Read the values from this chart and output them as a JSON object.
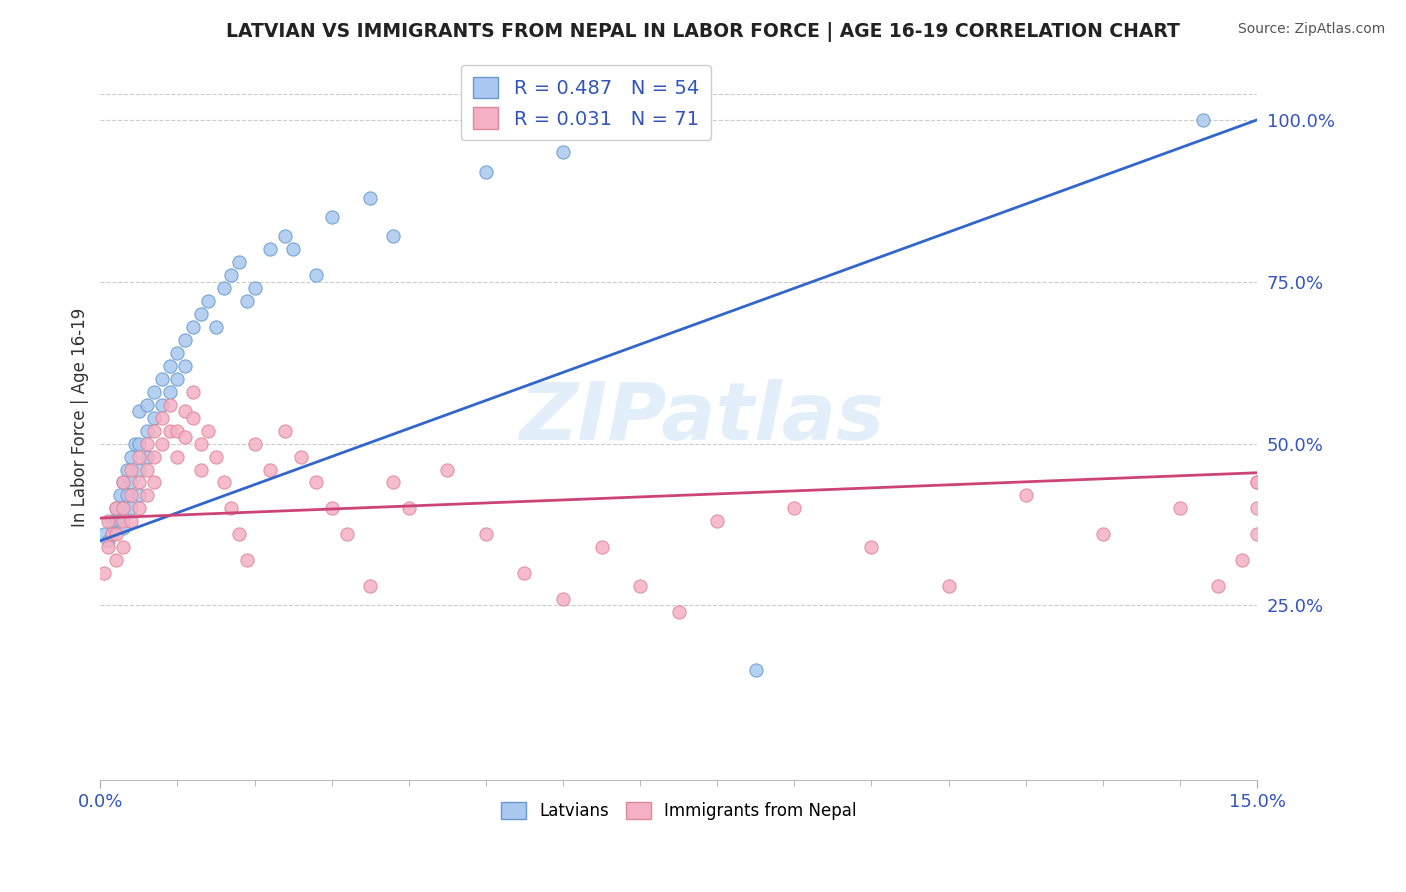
{
  "title": "LATVIAN VS IMMIGRANTS FROM NEPAL IN LABOR FORCE | AGE 16-19 CORRELATION CHART",
  "source": "Source: ZipAtlas.com",
  "ylabel": "In Labor Force | Age 16-19",
  "xlim": [
    0.0,
    0.15
  ],
  "ylim": [
    -0.02,
    1.1
  ],
  "ytick_labels_right": [
    "25.0%",
    "50.0%",
    "75.0%",
    "100.0%"
  ],
  "ytick_vals_right": [
    0.25,
    0.5,
    0.75,
    1.0
  ],
  "grid_vals": [
    0.25,
    0.5,
    0.75,
    1.0
  ],
  "latvian_color": "#aac8f0",
  "latvian_edge_color": "#6699cc",
  "nepal_color": "#f5b0c5",
  "nepal_edge_color": "#dd8899",
  "trend_latvian_color": "#3366cc",
  "trend_nepal_color": "#cc4477",
  "legend_R_color": "#3355bb",
  "latvian_R": 0.487,
  "latvian_N": 54,
  "nepal_R": 0.031,
  "nepal_N": 71,
  "watermark_text": "ZIPatlas",
  "watermark_color": "#d0e4f5",
  "background_color": "#ffffff",
  "latvian_x": [
    0.0005,
    0.001,
    0.0015,
    0.0015,
    0.002,
    0.002,
    0.0025,
    0.0025,
    0.003,
    0.003,
    0.003,
    0.0035,
    0.0035,
    0.004,
    0.004,
    0.004,
    0.0045,
    0.005,
    0.005,
    0.005,
    0.005,
    0.006,
    0.006,
    0.006,
    0.007,
    0.007,
    0.008,
    0.008,
    0.009,
    0.009,
    0.01,
    0.01,
    0.011,
    0.011,
    0.012,
    0.013,
    0.014,
    0.015,
    0.016,
    0.017,
    0.018,
    0.019,
    0.02,
    0.022,
    0.024,
    0.025,
    0.028,
    0.03,
    0.035,
    0.038,
    0.05,
    0.06,
    0.085,
    0.143
  ],
  "latvian_y": [
    0.36,
    0.35,
    0.38,
    0.36,
    0.4,
    0.38,
    0.42,
    0.38,
    0.44,
    0.4,
    0.37,
    0.46,
    0.42,
    0.48,
    0.44,
    0.4,
    0.5,
    0.5,
    0.46,
    0.55,
    0.42,
    0.56,
    0.52,
    0.48,
    0.58,
    0.54,
    0.6,
    0.56,
    0.62,
    0.58,
    0.64,
    0.6,
    0.66,
    0.62,
    0.68,
    0.7,
    0.72,
    0.68,
    0.74,
    0.76,
    0.78,
    0.72,
    0.74,
    0.8,
    0.82,
    0.8,
    0.76,
    0.85,
    0.88,
    0.82,
    0.92,
    0.95,
    0.15,
    1.0
  ],
  "nepal_x": [
    0.0005,
    0.001,
    0.001,
    0.0015,
    0.002,
    0.002,
    0.002,
    0.003,
    0.003,
    0.003,
    0.003,
    0.004,
    0.004,
    0.004,
    0.005,
    0.005,
    0.005,
    0.006,
    0.006,
    0.006,
    0.007,
    0.007,
    0.007,
    0.008,
    0.008,
    0.009,
    0.009,
    0.01,
    0.01,
    0.011,
    0.011,
    0.012,
    0.012,
    0.013,
    0.013,
    0.014,
    0.015,
    0.016,
    0.017,
    0.018,
    0.019,
    0.02,
    0.022,
    0.024,
    0.026,
    0.028,
    0.03,
    0.032,
    0.035,
    0.038,
    0.04,
    0.045,
    0.05,
    0.055,
    0.06,
    0.065,
    0.07,
    0.075,
    0.08,
    0.09,
    0.1,
    0.11,
    0.12,
    0.13,
    0.14,
    0.145,
    0.148,
    0.15,
    0.15,
    0.15,
    0.15
  ],
  "nepal_y": [
    0.3,
    0.38,
    0.34,
    0.36,
    0.4,
    0.36,
    0.32,
    0.44,
    0.4,
    0.38,
    0.34,
    0.46,
    0.42,
    0.38,
    0.48,
    0.44,
    0.4,
    0.5,
    0.46,
    0.42,
    0.52,
    0.48,
    0.44,
    0.54,
    0.5,
    0.56,
    0.52,
    0.52,
    0.48,
    0.55,
    0.51,
    0.58,
    0.54,
    0.46,
    0.5,
    0.52,
    0.48,
    0.44,
    0.4,
    0.36,
    0.32,
    0.5,
    0.46,
    0.52,
    0.48,
    0.44,
    0.4,
    0.36,
    0.28,
    0.44,
    0.4,
    0.46,
    0.36,
    0.3,
    0.26,
    0.34,
    0.28,
    0.24,
    0.38,
    0.4,
    0.34,
    0.28,
    0.42,
    0.36,
    0.4,
    0.28,
    0.32,
    0.44,
    0.4,
    0.36,
    0.44
  ]
}
